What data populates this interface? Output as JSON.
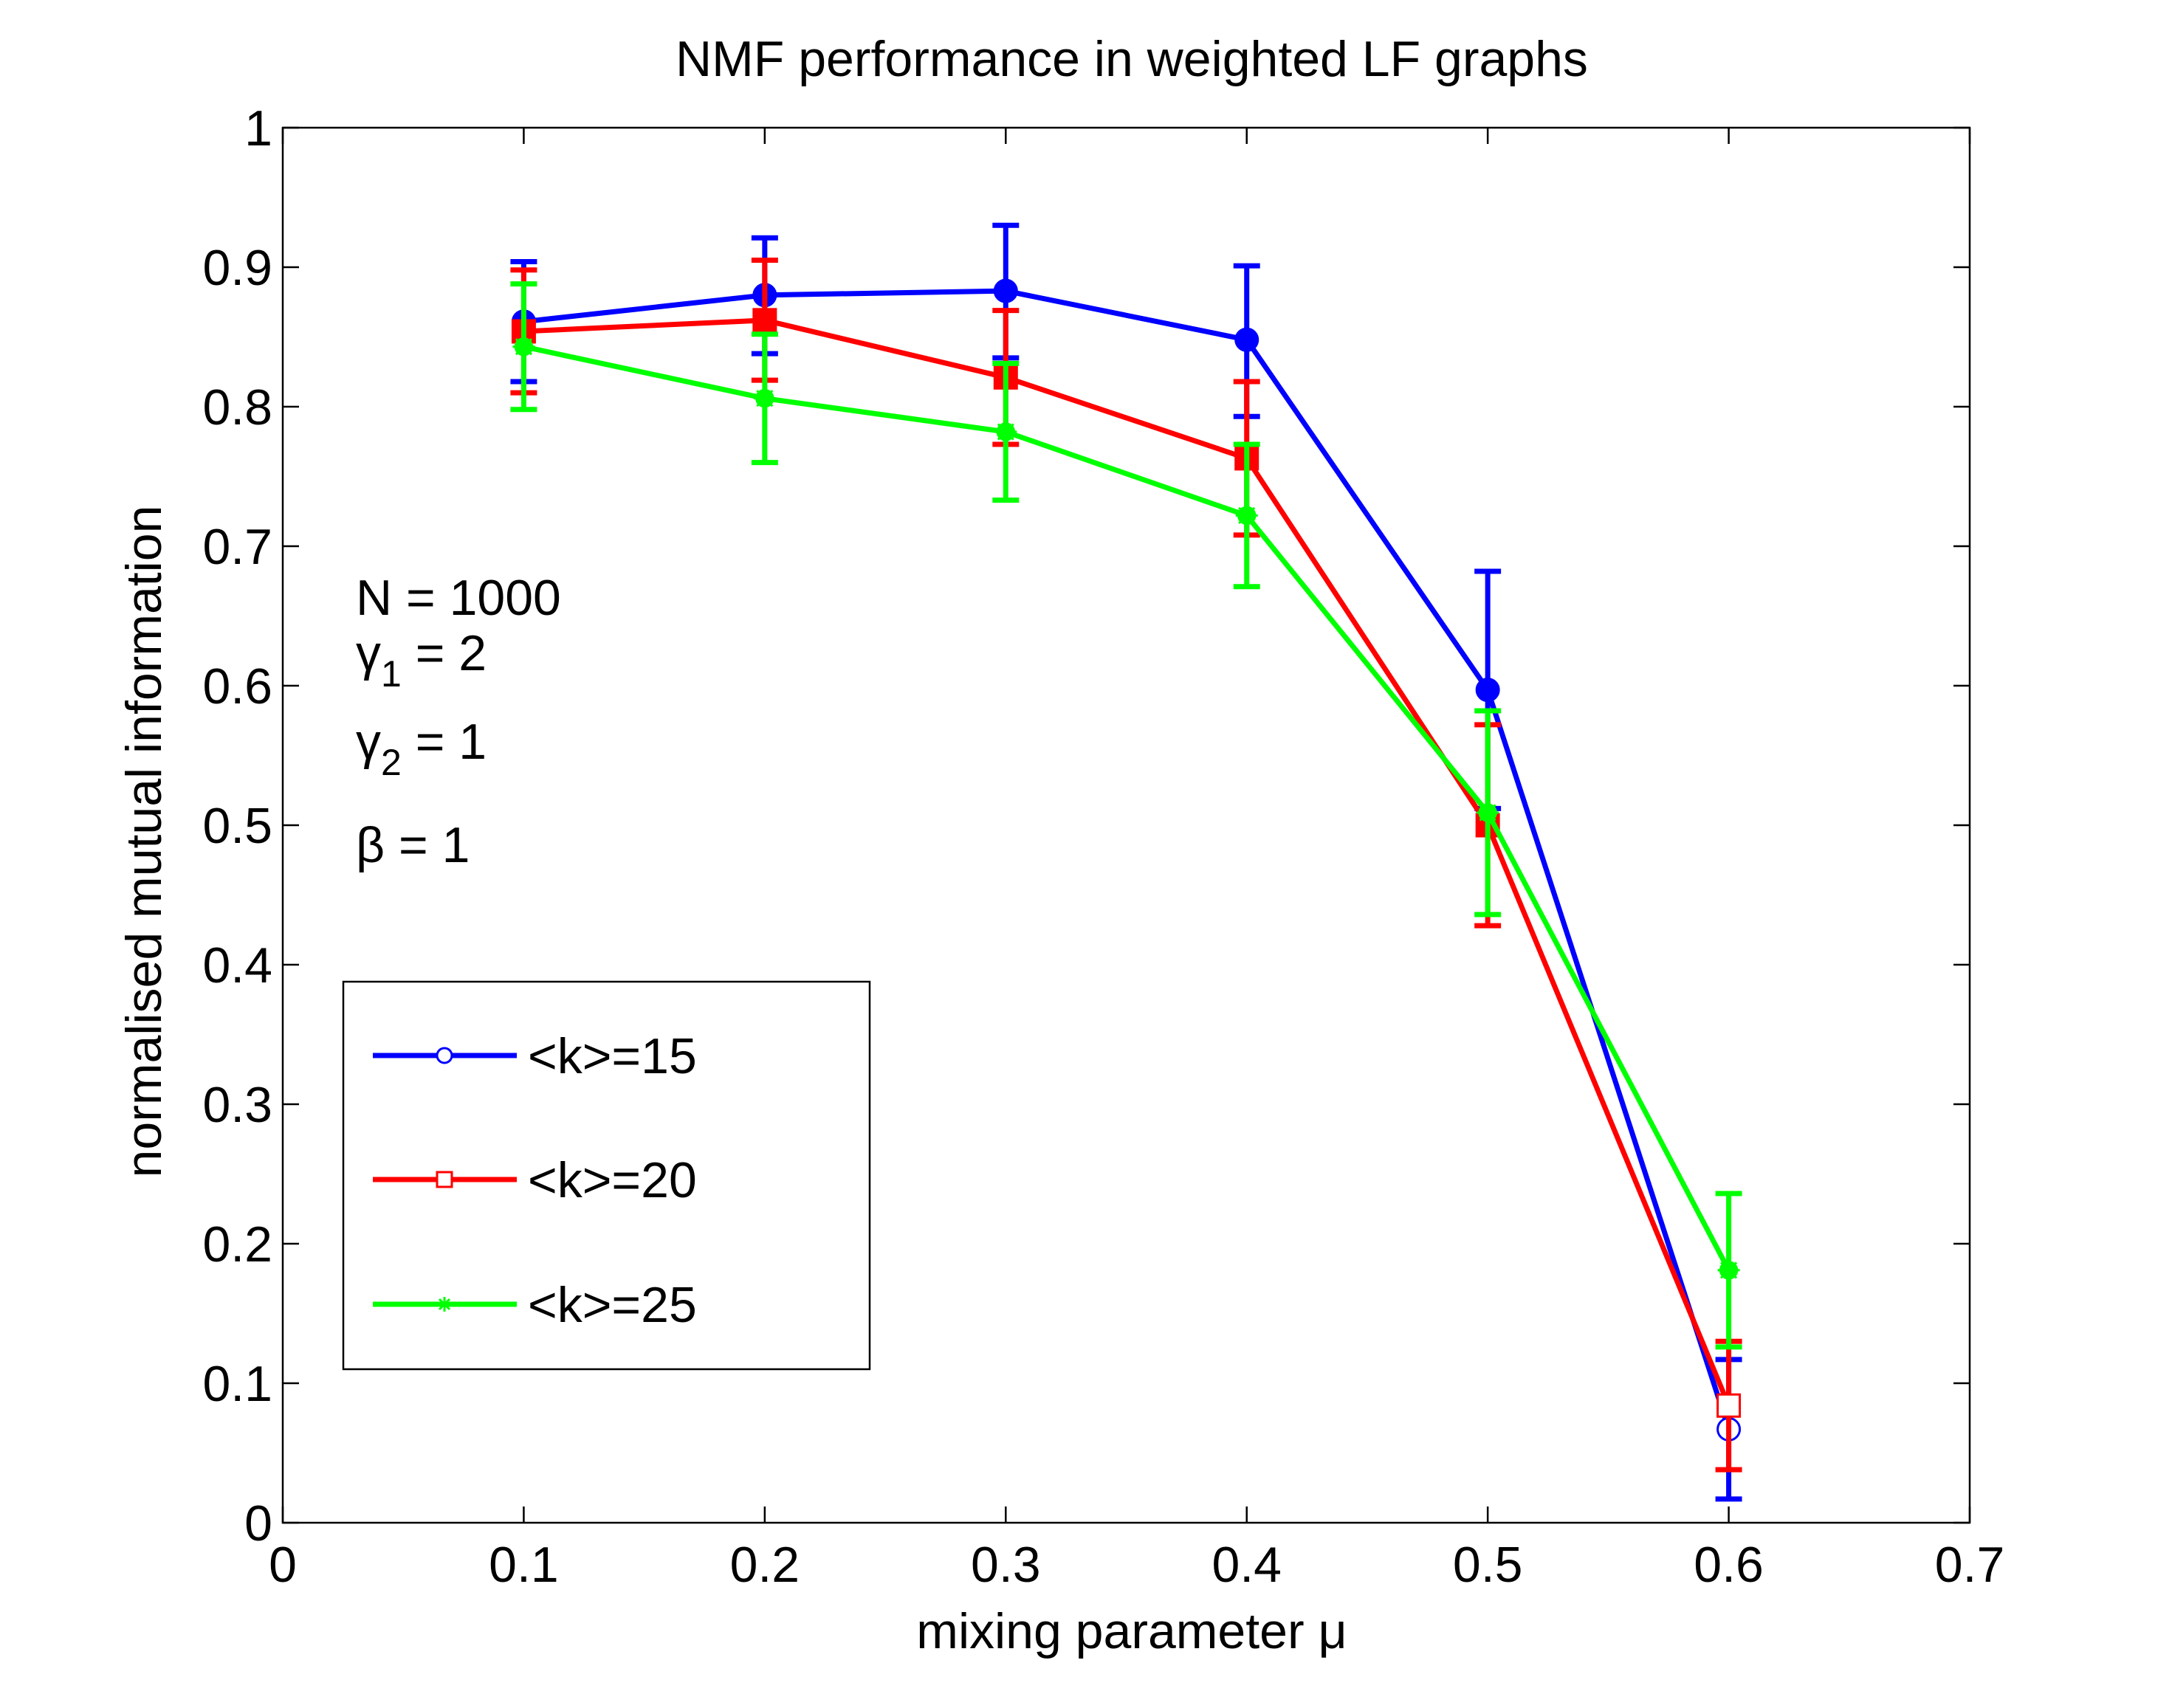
{
  "chart_data": {
    "type": "line",
    "title": "NMF performance in weighted LF graphs",
    "xlabel": "mixing parameter μ",
    "ylabel": "normalised mutual information",
    "xlim": [
      0,
      0.7
    ],
    "ylim": [
      0,
      1
    ],
    "x_ticks": [
      "0",
      "0.1",
      "0.2",
      "0.3",
      "0.4",
      "0.5",
      "0.6",
      "0.7"
    ],
    "y_ticks": [
      "0",
      "0.1",
      "0.2",
      "0.3",
      "0.4",
      "0.5",
      "0.6",
      "0.7",
      "0.8",
      "0.9",
      "1"
    ],
    "x": [
      0.1,
      0.2,
      0.3,
      0.4,
      0.5,
      0.6
    ],
    "series": [
      {
        "name": "<k>=15",
        "color": "#0000ff",
        "marker": "circle",
        "values": [
          0.861,
          0.88,
          0.883,
          0.848,
          0.597,
          0.067
        ],
        "err_low": [
          0.818,
          0.838,
          0.835,
          0.793,
          0.512,
          0.017
        ],
        "err_high": [
          0.904,
          0.921,
          0.93,
          0.901,
          0.682,
          0.117
        ]
      },
      {
        "name": "<k>=20",
        "color": "#ff0000",
        "marker": "square",
        "values": [
          0.854,
          0.862,
          0.821,
          0.763,
          0.5,
          0.084
        ],
        "err_low": [
          0.81,
          0.819,
          0.773,
          0.708,
          0.428,
          0.038
        ],
        "err_high": [
          0.898,
          0.905,
          0.869,
          0.818,
          0.572,
          0.13
        ]
      },
      {
        "name": "<k>=25",
        "color": "#00ff00",
        "marker": "star",
        "values": [
          0.843,
          0.806,
          0.782,
          0.722,
          0.509,
          0.181
        ],
        "err_low": [
          0.798,
          0.76,
          0.733,
          0.671,
          0.436,
          0.126
        ],
        "err_high": [
          0.888,
          0.852,
          0.831,
          0.773,
          0.582,
          0.236
        ]
      }
    ],
    "annotation": {
      "n_line": "N = 1000",
      "gamma1_symbol": "γ",
      "gamma1_sub": "1",
      "gamma1_rest": " = 2",
      "gamma2_symbol": "γ",
      "gamma2_sub": "2",
      "gamma2_rest": " = 1",
      "beta_line": "β = 1"
    },
    "legend_position": "bottom-left"
  }
}
